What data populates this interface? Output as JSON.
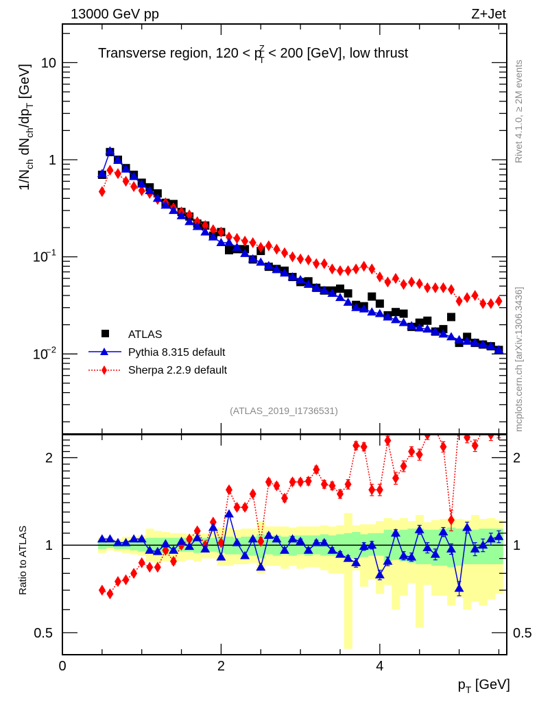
{
  "header": {
    "left": "13000 GeV pp",
    "right": "Z+Jet"
  },
  "side_labels": {
    "rivet": "Rivet 4.1.0, ≥ 2M events",
    "mcplots": "mcplots.cern.ch [arXiv:1306.3436]"
  },
  "chart_data": [
    {
      "type": "scatter",
      "panel": "main",
      "title": "Transverse region, 120 < p_T^Z < 200 [GeV], low thrust",
      "title_parts": {
        "pre": "Transverse region, 120 < p",
        "sup": "Z",
        "sub": "T",
        "post": " < 200 [GeV], low thrust"
      },
      "xlabel": "p_T [GeV]",
      "ylabel": "1/N_ch dN_ch/dp_T [GeV]",
      "yscale": "log",
      "xlim": [
        0,
        5.6
      ],
      "ylim": [
        0.0015,
        25
      ],
      "x_ticks": [
        0,
        2,
        4
      ],
      "y_ticks": [
        {
          "value": 10,
          "label": "10"
        },
        {
          "value": 1,
          "label": "1"
        },
        {
          "value": 0.1,
          "label": "10",
          "exp": "−1"
        },
        {
          "value": 0.01,
          "label": "10",
          "exp": "−2"
        }
      ],
      "watermark": "(ATLAS_2019_I1736531)",
      "legend_position": "bottom-left",
      "x": [
        0.5,
        0.6,
        0.7,
        0.8,
        0.9,
        1.0,
        1.1,
        1.2,
        1.3,
        1.4,
        1.5,
        1.6,
        1.7,
        1.8,
        1.9,
        2.0,
        2.1,
        2.2,
        2.3,
        2.4,
        2.5,
        2.6,
        2.7,
        2.8,
        2.9,
        3.0,
        3.1,
        3.2,
        3.3,
        3.4,
        3.5,
        3.6,
        3.7,
        3.8,
        3.9,
        4.0,
        4.1,
        4.2,
        4.3,
        4.4,
        4.5,
        4.6,
        4.7,
        4.8,
        4.9,
        5.0,
        5.1,
        5.2,
        5.3,
        5.4,
        5.5
      ],
      "series": [
        {
          "name": "ATLAS",
          "marker": "square",
          "color": "#000000",
          "values": [
            0.7,
            1.2,
            1.0,
            0.82,
            0.7,
            0.58,
            0.52,
            0.45,
            0.36,
            0.35,
            0.29,
            0.26,
            0.22,
            0.21,
            0.165,
            0.18,
            0.117,
            0.12,
            0.12,
            0.094,
            0.115,
            0.079,
            0.075,
            0.072,
            0.062,
            0.055,
            0.056,
            0.048,
            0.045,
            0.045,
            0.047,
            0.042,
            0.032,
            0.031,
            0.039,
            0.033,
            0.025,
            0.027,
            0.026,
            0.019,
            0.021,
            0.022,
            0.017,
            0.018,
            0.024,
            0.013,
            0.015,
            0.013,
            0.0125,
            0.012,
            0.011
          ]
        },
        {
          "name": "Pythia 8.315 default",
          "marker": "triangle",
          "line": "solid",
          "color": "#0000dd",
          "values": [
            0.72,
            1.23,
            0.99,
            0.8,
            0.67,
            0.56,
            0.48,
            0.4,
            0.34,
            0.3,
            0.265,
            0.23,
            0.205,
            0.18,
            0.16,
            0.14,
            0.14,
            0.125,
            0.108,
            0.095,
            0.088,
            0.081,
            0.074,
            0.068,
            0.062,
            0.058,
            0.052,
            0.048,
            0.045,
            0.042,
            0.038,
            0.034,
            0.03,
            0.029,
            0.027,
            0.026,
            0.024,
            0.0225,
            0.021,
            0.0195,
            0.0185,
            0.018,
            0.017,
            0.016,
            0.015,
            0.014,
            0.0135,
            0.013,
            0.0125,
            0.012,
            0.011
          ]
        },
        {
          "name": "Sherpa 2.2.9 default",
          "marker": "diamond",
          "line": "dotted",
          "color": "#ff0000",
          "values": [
            0.47,
            0.78,
            0.72,
            0.6,
            0.53,
            0.48,
            0.45,
            0.39,
            0.36,
            0.32,
            0.29,
            0.27,
            0.23,
            0.21,
            0.19,
            0.18,
            0.16,
            0.155,
            0.145,
            0.14,
            0.125,
            0.13,
            0.12,
            0.11,
            0.1,
            0.095,
            0.093,
            0.085,
            0.085,
            0.075,
            0.072,
            0.072,
            0.075,
            0.08,
            0.075,
            0.062,
            0.055,
            0.06,
            0.052,
            0.055,
            0.053,
            0.048,
            0.048,
            0.048,
            0.046,
            0.035,
            0.038,
            0.04,
            0.033,
            0.033,
            0.035
          ]
        }
      ]
    },
    {
      "type": "scatter",
      "panel": "ratio",
      "ylabel": "Ratio to ATLAS",
      "xlabel": "p_T [GeV]",
      "yscale": "log",
      "xlim": [
        0,
        5.6
      ],
      "ylim": [
        0.42,
        2.4
      ],
      "y_ticks": [
        {
          "value": 2,
          "label": "2"
        },
        {
          "value": 1,
          "label": "1"
        },
        {
          "value": 0.5,
          "label": "0.5"
        }
      ],
      "x_ticks": [
        0,
        2,
        4
      ],
      "x": [
        0.5,
        0.6,
        0.7,
        0.8,
        0.9,
        1.0,
        1.1,
        1.2,
        1.3,
        1.4,
        1.5,
        1.6,
        1.7,
        1.8,
        1.9,
        2.0,
        2.1,
        2.2,
        2.3,
        2.4,
        2.5,
        2.6,
        2.7,
        2.8,
        2.9,
        3.0,
        3.1,
        3.2,
        3.3,
        3.4,
        3.5,
        3.6,
        3.7,
        3.8,
        3.9,
        4.0,
        4.1,
        4.2,
        4.3,
        4.4,
        4.5,
        4.6,
        4.7,
        4.8,
        4.9,
        5.0,
        5.1,
        5.2,
        5.3,
        5.4,
        5.5
      ],
      "band_stat": {
        "color": "#99ff99",
        "lo": [
          0.97,
          0.98,
          0.97,
          0.97,
          0.96,
          0.95,
          0.94,
          0.93,
          0.94,
          0.94,
          0.95,
          0.95,
          0.94,
          0.95,
          0.95,
          0.94,
          0.93,
          0.93,
          0.92,
          0.92,
          0.9,
          0.93,
          0.92,
          0.93,
          0.92,
          0.93,
          0.92,
          0.93,
          0.92,
          0.92,
          0.91,
          0.9,
          0.9,
          0.91,
          0.92,
          0.92,
          0.88,
          0.89,
          0.88,
          0.87,
          0.86,
          0.86,
          0.85,
          0.85,
          0.84,
          0.85,
          0.86,
          0.86,
          0.86,
          0.86,
          0.86
        ],
        "hi": [
          1.03,
          1.02,
          1.03,
          1.03,
          1.04,
          1.05,
          1.06,
          1.06,
          1.06,
          1.06,
          1.06,
          1.06,
          1.06,
          1.06,
          1.06,
          1.07,
          1.07,
          1.06,
          1.07,
          1.07,
          1.09,
          1.07,
          1.08,
          1.07,
          1.08,
          1.08,
          1.08,
          1.08,
          1.09,
          1.08,
          1.09,
          1.1,
          1.11,
          1.09,
          1.1,
          1.1,
          1.13,
          1.12,
          1.13,
          1.14,
          1.14,
          1.13,
          1.13,
          1.14,
          1.15,
          1.14,
          1.13,
          1.13,
          1.14,
          1.14,
          1.14
        ]
      },
      "band_syst": {
        "color": "#ffff99",
        "lo": [
          0.94,
          0.96,
          0.95,
          0.94,
          0.93,
          0.92,
          0.88,
          0.87,
          0.88,
          0.88,
          0.88,
          0.89,
          0.88,
          0.9,
          0.9,
          0.85,
          0.85,
          0.86,
          0.86,
          0.87,
          0.8,
          0.85,
          0.85,
          0.83,
          0.85,
          0.83,
          0.84,
          0.84,
          0.82,
          0.8,
          0.8,
          0.44,
          0.82,
          0.72,
          0.76,
          0.68,
          0.73,
          0.6,
          0.67,
          0.74,
          0.52,
          0.73,
          0.67,
          0.67,
          0.62,
          0.66,
          0.6,
          0.64,
          0.62,
          0.65,
          0.68
        ],
        "hi": [
          1.06,
          1.05,
          1.05,
          1.07,
          1.07,
          1.08,
          1.14,
          1.12,
          1.11,
          1.1,
          1.1,
          1.09,
          1.09,
          1.1,
          1.12,
          1.15,
          1.15,
          1.13,
          1.14,
          1.14,
          1.21,
          1.16,
          1.16,
          1.16,
          1.15,
          1.16,
          1.16,
          1.16,
          1.17,
          1.16,
          1.17,
          1.29,
          1.17,
          1.18,
          1.18,
          1.21,
          1.24,
          1.22,
          1.24,
          1.21,
          1.27,
          1.2,
          1.22,
          1.23,
          1.24,
          1.23,
          1.22,
          1.27,
          1.23,
          1.24,
          1.22
        ]
      },
      "series": [
        {
          "name": "Pythia 8.315 default",
          "marker": "triangle",
          "color": "#0000dd",
          "values": [
            1.05,
            1.05,
            1.02,
            1.02,
            1.05,
            1.05,
            0.96,
            0.95,
            1.01,
            0.96,
            1.03,
            0.99,
            1.06,
            0.97,
            1.15,
            0.91,
            1.28,
            1.02,
            0.92,
            1.05,
            0.84,
            1.08,
            1.05,
            0.96,
            1.05,
            1.03,
            0.96,
            1.02,
            1.02,
            0.96,
            0.93,
            0.9,
            0.87,
            0.99,
            1.0,
            0.79,
            0.88,
            1.1,
            0.92,
            0.91,
            1.13,
            0.98,
            0.93,
            1.11,
            0.97,
            0.71,
            1.15,
            0.97,
            1.0,
            1.05,
            1.07
          ],
          "err": [
            0.01,
            0.01,
            0.01,
            0.01,
            0.01,
            0.01,
            0.01,
            0.01,
            0.01,
            0.01,
            0.01,
            0.01,
            0.01,
            0.01,
            0.01,
            0.01,
            0.01,
            0.01,
            0.01,
            0.01,
            0.01,
            0.02,
            0.02,
            0.02,
            0.02,
            0.02,
            0.02,
            0.02,
            0.02,
            0.02,
            0.02,
            0.02,
            0.03,
            0.03,
            0.03,
            0.03,
            0.03,
            0.03,
            0.03,
            0.03,
            0.04,
            0.04,
            0.04,
            0.04,
            0.04,
            0.04,
            0.05,
            0.05,
            0.05,
            0.05,
            0.05
          ]
        },
        {
          "name": "Sherpa 2.2.9 default",
          "marker": "diamond",
          "color": "#ff0000",
          "values": [
            0.7,
            0.68,
            0.75,
            0.76,
            0.8,
            0.87,
            0.84,
            0.84,
            0.96,
            0.88,
            1.0,
            1.05,
            1.12,
            1.0,
            1.2,
            1.02,
            1.55,
            1.35,
            1.35,
            1.5,
            1.03,
            1.65,
            1.6,
            1.45,
            1.65,
            1.65,
            1.66,
            1.82,
            1.62,
            1.6,
            1.5,
            1.62,
            2.2,
            2.18,
            1.55,
            1.55,
            2.29,
            1.7,
            1.87,
            2.1,
            2.05,
            2.4,
            2.5,
            2.18,
            1.22,
            2.7,
            2.35,
            2.2,
            2.5,
            2.4,
            2.45
          ],
          "err": [
            0.01,
            0.01,
            0.01,
            0.01,
            0.01,
            0.01,
            0.01,
            0.01,
            0.02,
            0.02,
            0.02,
            0.02,
            0.02,
            0.02,
            0.02,
            0.02,
            0.03,
            0.03,
            0.03,
            0.03,
            0.03,
            0.04,
            0.04,
            0.04,
            0.04,
            0.04,
            0.05,
            0.05,
            0.05,
            0.05,
            0.05,
            0.06,
            0.07,
            0.07,
            0.07,
            0.07,
            0.08,
            0.08,
            0.08,
            0.08,
            0.09,
            0.09,
            0.09,
            0.09,
            0.1,
            0.1,
            0.1,
            0.1,
            0.1,
            0.11,
            0.11
          ]
        }
      ]
    }
  ]
}
